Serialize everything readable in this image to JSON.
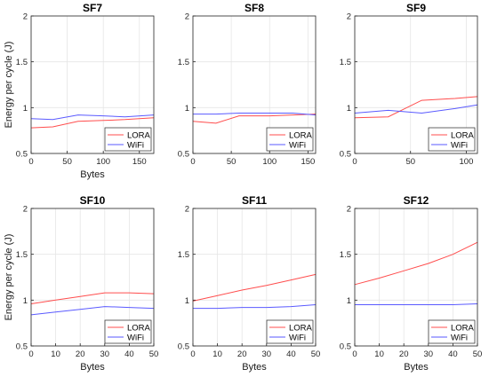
{
  "colors": {
    "LORA": "#ff4d4d",
    "WiFi": "#5a5aff",
    "grid": "#e6e6e6",
    "axis": "#262626"
  },
  "chart_data": [
    {
      "type": "line",
      "title": "SF7",
      "xlabel": "Bytes",
      "ylabel": "Energy per cycle (J)",
      "xlim": [
        0,
        170
      ],
      "ylim": [
        0.5,
        2
      ],
      "xticks": [
        0,
        50,
        100,
        150
      ],
      "yticks": [
        0.5,
        1,
        1.5,
        2
      ],
      "grid": true,
      "legend": "bottom-right",
      "series": [
        {
          "name": "LORA",
          "x": [
            0,
            30,
            65,
            100,
            130,
            170
          ],
          "y": [
            0.78,
            0.79,
            0.85,
            0.86,
            0.87,
            0.89
          ]
        },
        {
          "name": "WiFi",
          "x": [
            0,
            30,
            65,
            100,
            130,
            170
          ],
          "y": [
            0.88,
            0.87,
            0.92,
            0.91,
            0.9,
            0.92
          ]
        }
      ]
    },
    {
      "type": "line",
      "title": "SF8",
      "xlabel": "",
      "ylabel": "",
      "xlim": [
        0,
        160
      ],
      "ylim": [
        0.5,
        2
      ],
      "xticks": [
        0,
        50,
        100,
        150
      ],
      "yticks": [
        0.5,
        1,
        1.5,
        2
      ],
      "grid": true,
      "legend": "bottom-right",
      "series": [
        {
          "name": "LORA",
          "x": [
            0,
            30,
            60,
            100,
            130,
            160
          ],
          "y": [
            0.85,
            0.83,
            0.91,
            0.91,
            0.92,
            0.93
          ]
        },
        {
          "name": "WiFi",
          "x": [
            0,
            30,
            60,
            100,
            130,
            160
          ],
          "y": [
            0.93,
            0.93,
            0.94,
            0.94,
            0.94,
            0.92
          ]
        }
      ]
    },
    {
      "type": "line",
      "title": "SF9",
      "xlabel": "",
      "ylabel": "",
      "xlim": [
        0,
        110
      ],
      "ylim": [
        0.5,
        2
      ],
      "xticks": [
        0,
        50,
        100
      ],
      "yticks": [
        0.5,
        1,
        1.5,
        2
      ],
      "grid": true,
      "legend": "bottom-right",
      "series": [
        {
          "name": "LORA",
          "x": [
            0,
            30,
            60,
            90,
            110
          ],
          "y": [
            0.89,
            0.9,
            1.08,
            1.1,
            1.12
          ]
        },
        {
          "name": "WiFi",
          "x": [
            0,
            30,
            60,
            90,
            110
          ],
          "y": [
            0.94,
            0.97,
            0.94,
            0.99,
            1.03
          ]
        }
      ]
    },
    {
      "type": "line",
      "title": "SF10",
      "xlabel": "Bytes",
      "ylabel": "Energy per cycle (J)",
      "xlim": [
        0,
        50
      ],
      "ylim": [
        0.5,
        2
      ],
      "xticks": [
        0,
        10,
        20,
        30,
        40,
        50
      ],
      "yticks": [
        0.5,
        1,
        1.5,
        2
      ],
      "grid": true,
      "legend": "bottom-right",
      "series": [
        {
          "name": "LORA",
          "x": [
            0,
            10,
            20,
            30,
            40,
            50
          ],
          "y": [
            0.96,
            1.0,
            1.04,
            1.08,
            1.08,
            1.07
          ]
        },
        {
          "name": "WiFi",
          "x": [
            0,
            10,
            20,
            30,
            40,
            50
          ],
          "y": [
            0.84,
            0.87,
            0.9,
            0.93,
            0.92,
            0.91
          ]
        }
      ]
    },
    {
      "type": "line",
      "title": "SF11",
      "xlabel": "Bytes",
      "ylabel": "",
      "xlim": [
        0,
        50
      ],
      "ylim": [
        0.5,
        2
      ],
      "xticks": [
        0,
        10,
        20,
        30,
        40,
        50
      ],
      "yticks": [
        0.5,
        1,
        1.5,
        2
      ],
      "grid": true,
      "legend": "bottom-right",
      "series": [
        {
          "name": "LORA",
          "x": [
            0,
            10,
            20,
            30,
            40,
            50
          ],
          "y": [
            0.99,
            1.05,
            1.11,
            1.16,
            1.22,
            1.28
          ]
        },
        {
          "name": "WiFi",
          "x": [
            0,
            10,
            20,
            30,
            40,
            50
          ],
          "y": [
            0.91,
            0.91,
            0.92,
            0.92,
            0.93,
            0.95
          ]
        }
      ]
    },
    {
      "type": "line",
      "title": "SF12",
      "xlabel": "Bytes",
      "ylabel": "",
      "xlim": [
        0,
        50
      ],
      "ylim": [
        0.5,
        2
      ],
      "xticks": [
        0,
        10,
        20,
        30,
        40,
        50
      ],
      "yticks": [
        0.5,
        1,
        1.5,
        2
      ],
      "grid": true,
      "legend": "bottom-right",
      "series": [
        {
          "name": "LORA",
          "x": [
            0,
            10,
            20,
            30,
            40,
            50
          ],
          "y": [
            1.17,
            1.24,
            1.32,
            1.4,
            1.5,
            1.63
          ]
        },
        {
          "name": "WiFi",
          "x": [
            0,
            10,
            20,
            30,
            40,
            50
          ],
          "y": [
            0.95,
            0.95,
            0.95,
            0.95,
            0.95,
            0.96
          ]
        }
      ]
    }
  ]
}
